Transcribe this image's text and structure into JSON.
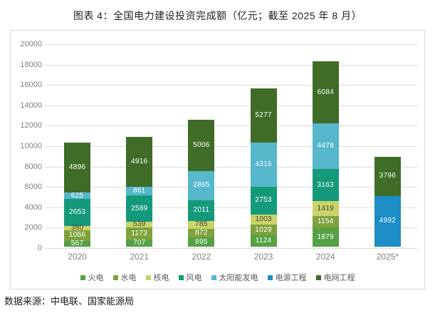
{
  "title": "图表 4：全国电力建设投资完成额（亿元；截至 2025 年 8 月）",
  "source": "数据来源：中电联、国家能源局",
  "chart_data": {
    "type": "bar",
    "stacked": true,
    "title": "图表 4：全国电力建设投资完成额（亿元；截至 2025 年 8 月）",
    "unit": "亿元",
    "categories": [
      "2020",
      "2021",
      "2022",
      "2023",
      "2024",
      "2025*"
    ],
    "series": [
      {
        "name": "火电",
        "color": "#55a245",
        "label_color": "#ffffff",
        "values": [
          567,
          707,
          895,
          1124,
          1879,
          null
        ]
      },
      {
        "name": "水电",
        "color": "#7fa23c",
        "label_color": "#ffffff",
        "values": [
          1066,
          1173,
          872,
          1029,
          1154,
          null
        ]
      },
      {
        "name": "核电",
        "color": "#c9d468",
        "label_color": "#3f3f3f",
        "values": [
          380,
          539,
          785,
          1003,
          1419,
          null
        ]
      },
      {
        "name": "风电",
        "color": "#14997b",
        "label_color": "#ffffff",
        "values": [
          2653,
          2589,
          2011,
          2753,
          3163,
          null
        ]
      },
      {
        "name": "太阳能发电",
        "color": "#56b8ca",
        "label_color": "#ffffff",
        "values": [
          625,
          861,
          2865,
          4316,
          4478,
          null
        ]
      },
      {
        "name": "电源工程",
        "color": "#1c8dc5",
        "label_color": "#ffffff",
        "values": [
          null,
          null,
          null,
          null,
          null,
          4992
        ]
      },
      {
        "name": "电网工程",
        "color": "#3f6d28",
        "label_color": "#ffffff",
        "values": [
          4896,
          4916,
          5006,
          5277,
          6084,
          3796
        ]
      }
    ],
    "ylim": [
      0,
      20000
    ],
    "ytick_step": 2000,
    "grid": true,
    "legend_position": "bottom",
    "xlabel": "",
    "ylabel": ""
  }
}
